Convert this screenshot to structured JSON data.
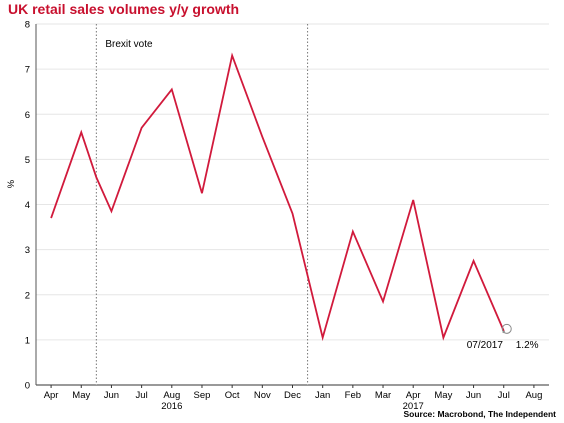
{
  "chart_data": {
    "type": "line",
    "title": "UK retail sales volumes y/y growth",
    "source": "Source: Macrobond, The Independent",
    "ylabel": "%",
    "ylim": [
      0,
      8
    ],
    "yticks": [
      0,
      1,
      2,
      3,
      4,
      5,
      6,
      7,
      8
    ],
    "categories": [
      "Apr",
      "May",
      "Jun",
      "Jul",
      "Aug",
      "Sep",
      "Oct",
      "Nov",
      "Dec",
      "Jan",
      "Feb",
      "Mar",
      "Apr",
      "May",
      "Jun",
      "Jul",
      "Aug"
    ],
    "year_labels": [
      {
        "label": "2016",
        "category_index": 4
      },
      {
        "label": "2017",
        "category_index": 12
      }
    ],
    "series": [
      {
        "color": "#d11a3c",
        "values": [
          3.7,
          5.6,
          4.6,
          3.85,
          5.7,
          6.55,
          4.25,
          7.3,
          5.5,
          3.8,
          1.05,
          3.4,
          1.85,
          4.1,
          1.05,
          2.75,
          1.2
        ]
      }
    ],
    "x_breakpoints": [
      0,
      1,
      1.5,
      2,
      3,
      4,
      5,
      6,
      7,
      8,
      9,
      10,
      11,
      12,
      13,
      14,
      15
    ],
    "vlines": [
      {
        "label": "Brexit vote",
        "position": 1.5
      },
      {
        "label": "",
        "position": 8.5
      }
    ],
    "annotation": {
      "date": "07/2017",
      "value": "1.2%"
    },
    "grid": true,
    "legend": "none"
  }
}
